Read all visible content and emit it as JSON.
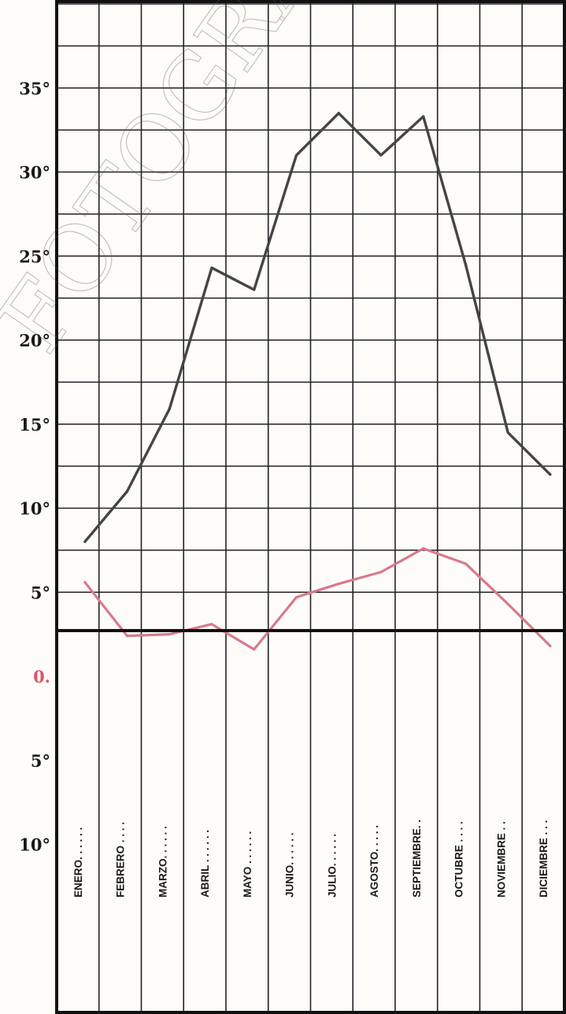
{
  "chart_data": {
    "type": "line",
    "categories": [
      "ENERO. . . . . .",
      "FEBRERO . . . .",
      "MARZO. . . . . .",
      "ABRIL . . . . . .",
      "MAYO . . . . . .",
      "JUNIO. . . . . .",
      "JULIO. . . . . .",
      "AGOSTO. . . . .",
      "SEPTIEMBRE. .",
      "OCTUBRE . . . .",
      "NOVIEMBRE . .",
      "DICIEMBRE . . ."
    ],
    "series": [
      {
        "color": "#454545",
        "values": [
          8.0,
          11.0,
          15.9,
          24.3,
          23.0,
          31.0,
          33.5,
          31.0,
          33.3,
          24.5,
          14.5,
          12.0
        ]
      },
      {
        "color": "#d97a8c",
        "values": [
          5.6,
          2.4,
          2.5,
          3.1,
          1.6,
          4.7,
          5.5,
          6.2,
          7.6,
          6.7,
          4.3,
          1.8
        ]
      }
    ],
    "ytick_labels": [
      {
        "v": 35,
        "t": "35°"
      },
      {
        "v": 30,
        "t": "30°"
      },
      {
        "v": 25,
        "t": "25°"
      },
      {
        "v": 20,
        "t": "20°"
      },
      {
        "v": 15,
        "t": "15°"
      },
      {
        "v": 10,
        "t": "10°"
      },
      {
        "v": 5,
        "t": "5°"
      },
      {
        "v": 0,
        "t": "0."
      },
      {
        "v": -5,
        "t": "5°"
      },
      {
        "v": -10,
        "t": "10°"
      }
    ],
    "ylim": [
      -10,
      40
    ],
    "grid": true,
    "zero_label_color": "#e0506a"
  },
  "watermark": "FOTOGRAFICA DE"
}
